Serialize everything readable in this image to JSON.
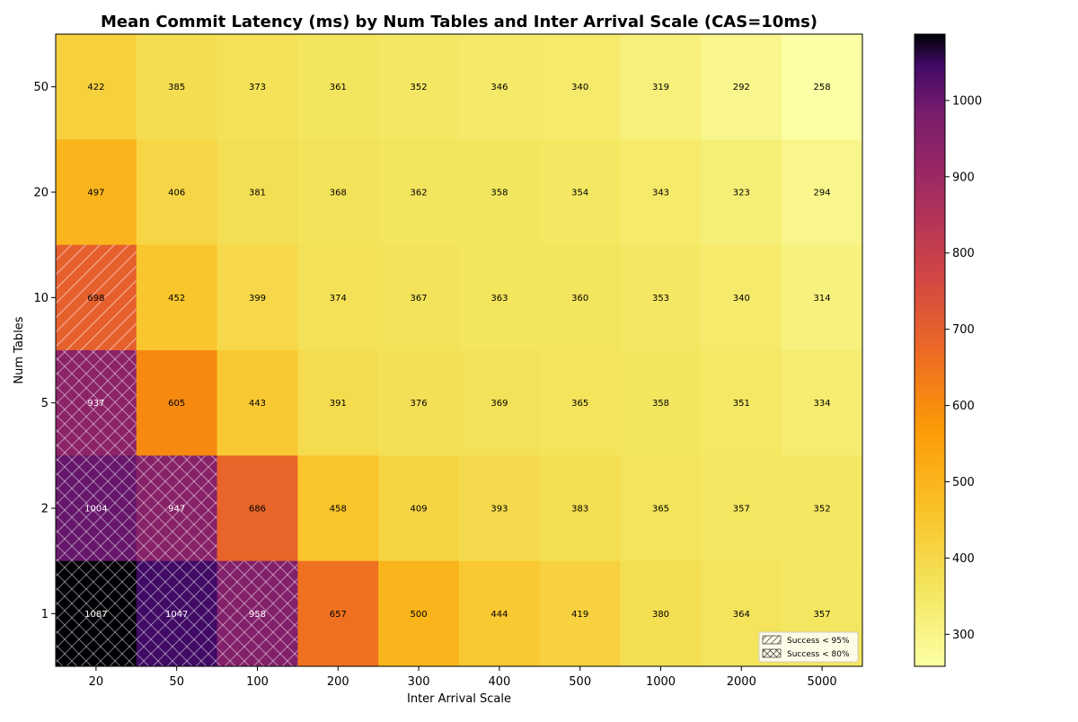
{
  "chart_data": {
    "type": "heatmap",
    "title": "Mean Commit Latency (ms) by Num Tables and Inter Arrival Scale (CAS=10ms)",
    "xlabel": "Inter Arrival Scale",
    "ylabel": "Num Tables",
    "x_categories": [
      "20",
      "50",
      "100",
      "200",
      "300",
      "400",
      "500",
      "1000",
      "2000",
      "5000"
    ],
    "y_categories_top_to_bottom": [
      "50",
      "20",
      "10",
      "5",
      "2",
      "1"
    ],
    "values": [
      [
        422,
        385,
        373,
        361,
        352,
        346,
        340,
        319,
        292,
        258
      ],
      [
        497,
        406,
        381,
        368,
        362,
        358,
        354,
        343,
        323,
        294
      ],
      [
        698,
        452,
        399,
        374,
        367,
        363,
        360,
        353,
        340,
        314
      ],
      [
        937,
        605,
        443,
        391,
        376,
        369,
        365,
        358,
        351,
        334
      ],
      [
        1004,
        947,
        686,
        458,
        409,
        393,
        383,
        365,
        357,
        352
      ],
      [
        1087,
        1047,
        958,
        657,
        500,
        444,
        419,
        380,
        364,
        357
      ]
    ],
    "hatch": [
      [
        "",
        "",
        "",
        "",
        "",
        "",
        "",
        "",
        "",
        ""
      ],
      [
        "",
        "",
        "",
        "",
        "",
        "",
        "",
        "",
        "",
        ""
      ],
      [
        "single",
        "",
        "",
        "",
        "",
        "",
        "",
        "",
        "",
        ""
      ],
      [
        "double",
        "",
        "",
        "",
        "",
        "",
        "",
        "",
        "",
        ""
      ],
      [
        "double",
        "double",
        "",
        "",
        "",
        "",
        "",
        "",
        "",
        ""
      ],
      [
        "double",
        "double",
        "double",
        "",
        "",
        "",
        "",
        "",
        "",
        ""
      ]
    ],
    "colormap": "inferno_r",
    "vmin": 258,
    "vmax": 1087,
    "colorbar_ticks": [
      300,
      400,
      500,
      600,
      700,
      800,
      900,
      1000
    ],
    "legend": {
      "position": "bottom-right",
      "entries": [
        {
          "label": "Success < 95%",
          "hatch": "single"
        },
        {
          "label": "Success < 80%",
          "hatch": "double"
        }
      ]
    }
  }
}
